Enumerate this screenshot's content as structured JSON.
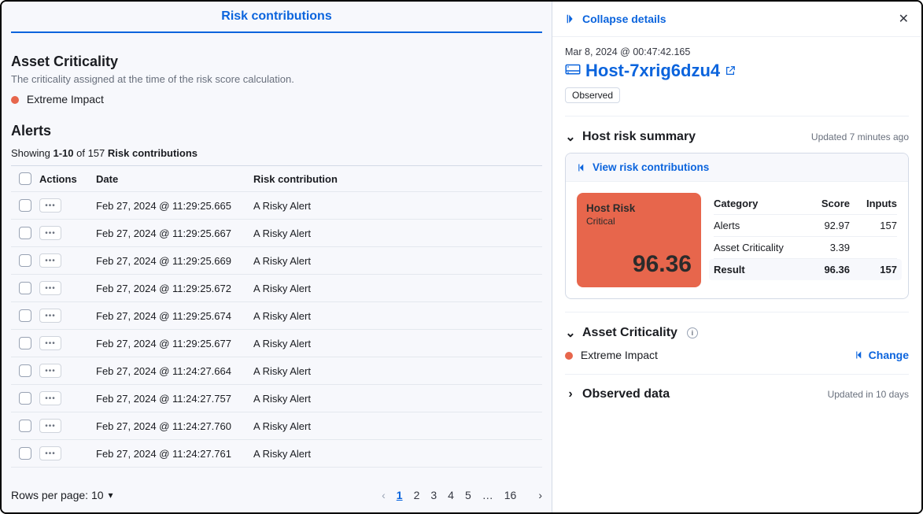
{
  "tabs": {
    "risk_contributions": "Risk contributions"
  },
  "asset_criticality": {
    "heading": "Asset Criticality",
    "description": "The criticality assigned at the time of the risk score calculation.",
    "level_label": "Extreme Impact",
    "dot_color": "#e7664c"
  },
  "alerts": {
    "heading": "Alerts",
    "showing_prefix": "Showing ",
    "showing_range": "1-10",
    "showing_mid": " of 157 ",
    "showing_suffix": "Risk contributions",
    "columns": {
      "actions": "Actions",
      "date": "Date",
      "contribution": "Risk contribution"
    },
    "rows": [
      {
        "date": "Feb 27, 2024 @ 11:29:25.665",
        "contribution": "A Risky Alert"
      },
      {
        "date": "Feb 27, 2024 @ 11:29:25.667",
        "contribution": "A Risky Alert"
      },
      {
        "date": "Feb 27, 2024 @ 11:29:25.669",
        "contribution": "A Risky Alert"
      },
      {
        "date": "Feb 27, 2024 @ 11:29:25.672",
        "contribution": "A Risky Alert"
      },
      {
        "date": "Feb 27, 2024 @ 11:29:25.674",
        "contribution": "A Risky Alert"
      },
      {
        "date": "Feb 27, 2024 @ 11:29:25.677",
        "contribution": "A Risky Alert"
      },
      {
        "date": "Feb 27, 2024 @ 11:24:27.664",
        "contribution": "A Risky Alert"
      },
      {
        "date": "Feb 27, 2024 @ 11:24:27.757",
        "contribution": "A Risky Alert"
      },
      {
        "date": "Feb 27, 2024 @ 11:24:27.760",
        "contribution": "A Risky Alert"
      },
      {
        "date": "Feb 27, 2024 @ 11:24:27.761",
        "contribution": "A Risky Alert"
      }
    ]
  },
  "footer": {
    "rows_per_page_label": "Rows per page: 10",
    "pages": [
      "1",
      "2",
      "3",
      "4",
      "5",
      "…",
      "16"
    ],
    "active_page_index": 0
  },
  "flyout": {
    "collapse_label": "Collapse details",
    "timestamp": "Mar 8, 2024 @ 00:47:42.165",
    "host_name": "Host-7xrig6dzu4",
    "observed_badge": "Observed",
    "host_risk_summary": {
      "title": "Host risk summary",
      "updated": "Updated 7 minutes ago",
      "view_link": "View risk contributions",
      "box": {
        "title": "Host Risk",
        "level": "Critical",
        "score": "96.36",
        "bg_color": "#e7664c",
        "text_color": "#2b2b2b"
      },
      "table": {
        "headers": {
          "category": "Category",
          "score": "Score",
          "inputs": "Inputs"
        },
        "rows": [
          {
            "category": "Alerts",
            "score": "92.97",
            "inputs": "157"
          },
          {
            "category": "Asset Criticality",
            "score": "3.39",
            "inputs": ""
          }
        ],
        "result": {
          "label": "Result",
          "score": "96.36",
          "inputs": "157"
        }
      }
    },
    "asset_criticality_section": {
      "title": "Asset Criticality",
      "level": "Extreme Impact",
      "change_label": "Change"
    },
    "observed_data": {
      "title": "Observed data",
      "updated": "Updated in 10 days"
    }
  },
  "colors": {
    "link": "#0b64dd",
    "border": "#d3dae6",
    "muted": "#69707d"
  }
}
